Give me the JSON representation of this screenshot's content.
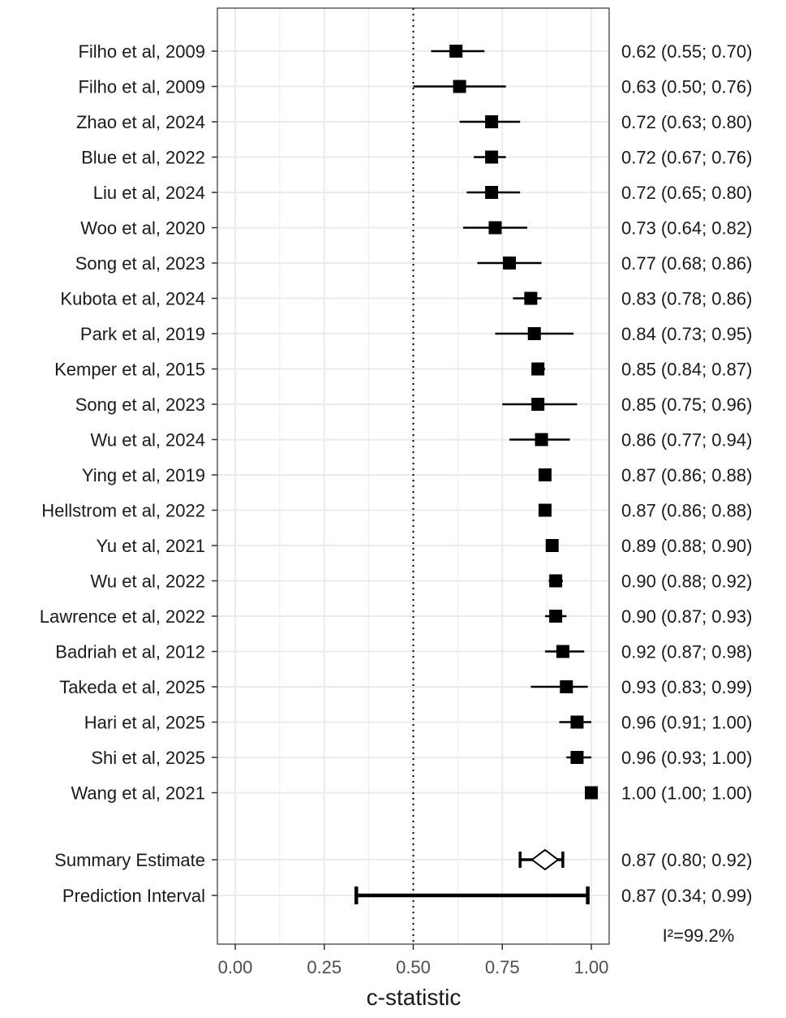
{
  "chart_data": {
    "type": "forest",
    "xlabel": "c-statistic",
    "xlim": [
      0,
      1.0
    ],
    "x_ticks": [
      0.0,
      0.25,
      0.5,
      0.75,
      1.0
    ],
    "x_tick_labels": [
      "0.00",
      "0.25",
      "0.50",
      "0.75",
      "1.00"
    ],
    "reference_line": 0.5,
    "grid": true,
    "studies": [
      {
        "label": "Filho et al, 2009",
        "estimate": 0.62,
        "lower": 0.55,
        "upper": 0.7,
        "ci_text": "0.62 (0.55; 0.70)"
      },
      {
        "label": "Filho et al, 2009",
        "estimate": 0.63,
        "lower": 0.5,
        "upper": 0.76,
        "ci_text": "0.63 (0.50; 0.76)"
      },
      {
        "label": "Zhao et al, 2024",
        "estimate": 0.72,
        "lower": 0.63,
        "upper": 0.8,
        "ci_text": "0.72 (0.63; 0.80)"
      },
      {
        "label": "Blue et al, 2022",
        "estimate": 0.72,
        "lower": 0.67,
        "upper": 0.76,
        "ci_text": "0.72 (0.67; 0.76)"
      },
      {
        "label": "Liu et al, 2024",
        "estimate": 0.72,
        "lower": 0.65,
        "upper": 0.8,
        "ci_text": "0.72 (0.65; 0.80)"
      },
      {
        "label": "Woo et al, 2020",
        "estimate": 0.73,
        "lower": 0.64,
        "upper": 0.82,
        "ci_text": "0.73 (0.64; 0.82)"
      },
      {
        "label": "Song et al, 2023",
        "estimate": 0.77,
        "lower": 0.68,
        "upper": 0.86,
        "ci_text": "0.77 (0.68; 0.86)"
      },
      {
        "label": "Kubota et al, 2024",
        "estimate": 0.83,
        "lower": 0.78,
        "upper": 0.86,
        "ci_text": "0.83 (0.78; 0.86)"
      },
      {
        "label": "Park et al, 2019",
        "estimate": 0.84,
        "lower": 0.73,
        "upper": 0.95,
        "ci_text": "0.84 (0.73; 0.95)"
      },
      {
        "label": "Kemper et al, 2015",
        "estimate": 0.85,
        "lower": 0.84,
        "upper": 0.87,
        "ci_text": "0.85 (0.84; 0.87)"
      },
      {
        "label": "Song et al, 2023",
        "estimate": 0.85,
        "lower": 0.75,
        "upper": 0.96,
        "ci_text": "0.85 (0.75; 0.96)"
      },
      {
        "label": "Wu et al, 2024",
        "estimate": 0.86,
        "lower": 0.77,
        "upper": 0.94,
        "ci_text": "0.86 (0.77; 0.94)"
      },
      {
        "label": "Ying et al, 2019",
        "estimate": 0.87,
        "lower": 0.86,
        "upper": 0.88,
        "ci_text": "0.87 (0.86; 0.88)"
      },
      {
        "label": "Hellstrom et al, 2022",
        "estimate": 0.87,
        "lower": 0.86,
        "upper": 0.88,
        "ci_text": "0.87 (0.86; 0.88)"
      },
      {
        "label": "Yu et al, 2021",
        "estimate": 0.89,
        "lower": 0.88,
        "upper": 0.9,
        "ci_text": "0.89 (0.88; 0.90)"
      },
      {
        "label": "Wu et al, 2022",
        "estimate": 0.9,
        "lower": 0.88,
        "upper": 0.92,
        "ci_text": "0.90 (0.88; 0.92)"
      },
      {
        "label": "Lawrence et al, 2022",
        "estimate": 0.9,
        "lower": 0.87,
        "upper": 0.93,
        "ci_text": "0.90 (0.87; 0.93)"
      },
      {
        "label": "Badriah et al, 2012",
        "estimate": 0.92,
        "lower": 0.87,
        "upper": 0.98,
        "ci_text": "0.92 (0.87; 0.98)"
      },
      {
        "label": "Takeda et al, 2025",
        "estimate": 0.93,
        "lower": 0.83,
        "upper": 0.99,
        "ci_text": "0.93 (0.83; 0.99)"
      },
      {
        "label": "Hari et al, 2025",
        "estimate": 0.96,
        "lower": 0.91,
        "upper": 1.0,
        "ci_text": "0.96 (0.91; 1.00)"
      },
      {
        "label": "Shi et al, 2025",
        "estimate": 0.96,
        "lower": 0.93,
        "upper": 1.0,
        "ci_text": "0.96 (0.93; 1.00)"
      },
      {
        "label": "Wang et al, 2021",
        "estimate": 1.0,
        "lower": 1.0,
        "upper": 1.0,
        "ci_text": "1.00 (1.00; 1.00)"
      }
    ],
    "summary": {
      "label": "Summary Estimate",
      "estimate": 0.87,
      "lower": 0.8,
      "upper": 0.92,
      "ci_text": "0.87 (0.80; 0.92)"
    },
    "prediction_interval": {
      "label": "Prediction Interval",
      "estimate": 0.87,
      "lower": 0.34,
      "upper": 0.99,
      "ci_text": "0.87 (0.34; 0.99)"
    },
    "heterogeneity": "I²=99.2%"
  },
  "colors": {
    "mark": "#000000",
    "grid": "#ebebeb",
    "panel_border": "#333333",
    "text": "#1a1a1a",
    "tick_text": "#4d4d4d"
  }
}
